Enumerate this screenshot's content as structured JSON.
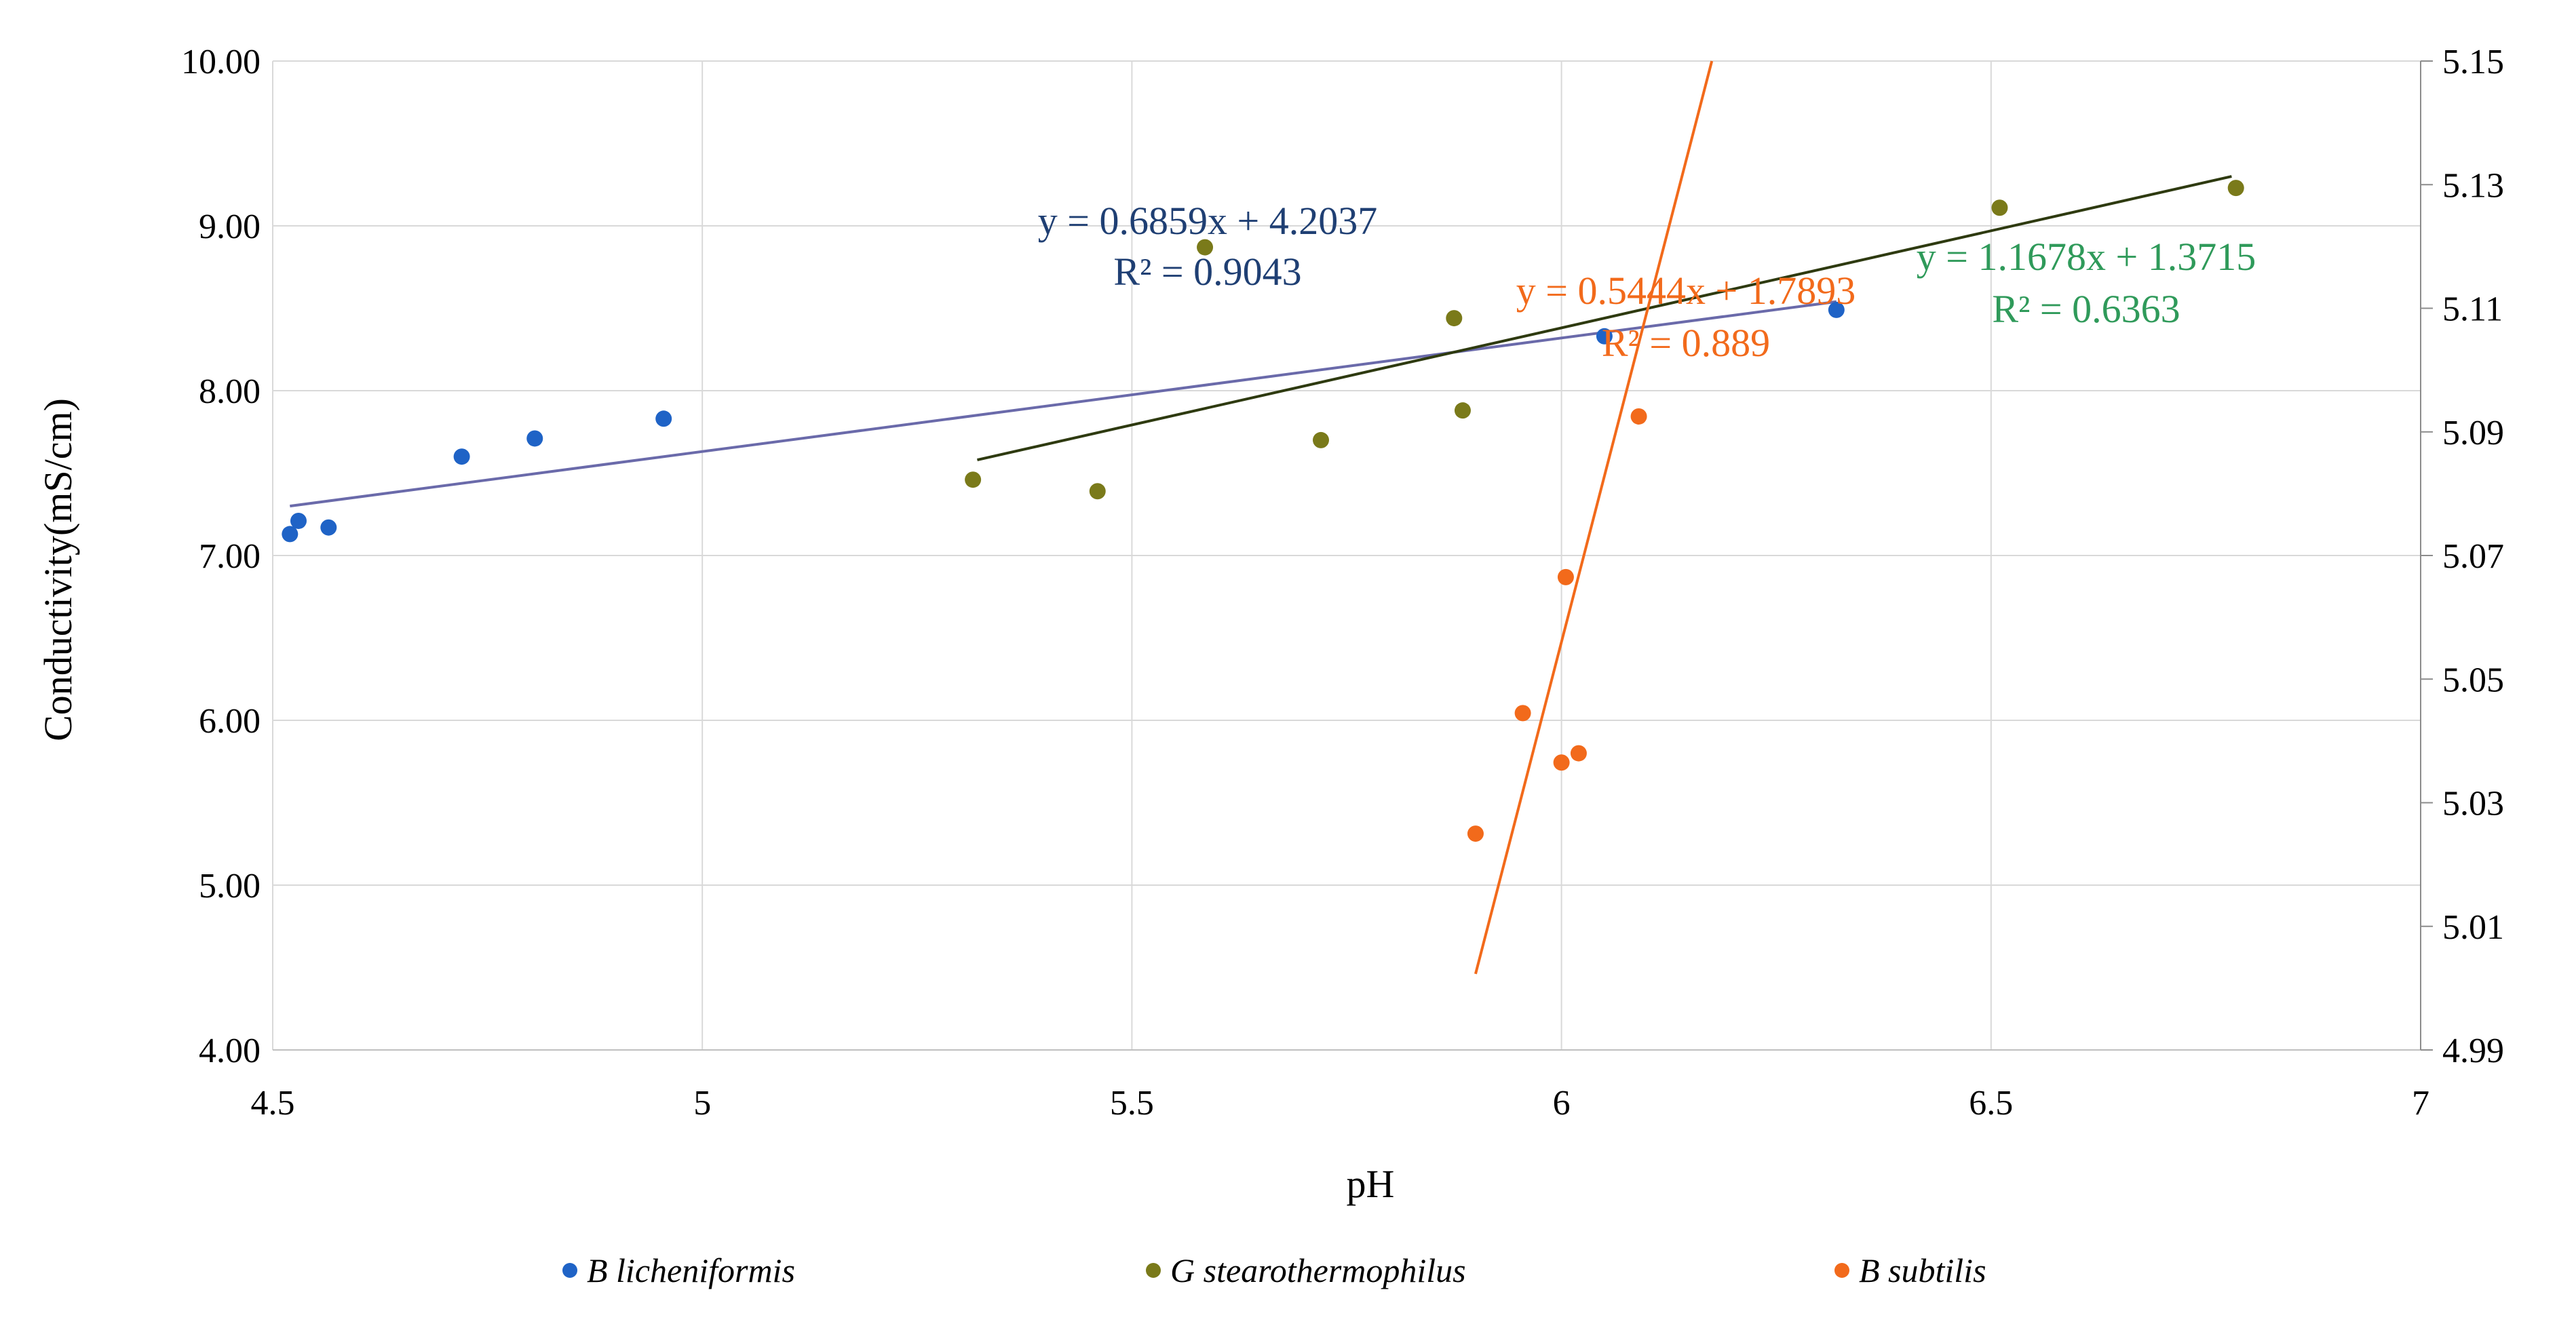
{
  "chart_data": {
    "type": "scatter",
    "xlabel": "pH",
    "ylabel": "Conductivity(mS/cm)",
    "xlim": [
      4.5,
      7
    ],
    "ylim": [
      4,
      10
    ],
    "y2lim": [
      4.99,
      5.15
    ],
    "xticks": [
      "4.5",
      "5",
      "5.5",
      "6",
      "6.5",
      "7"
    ],
    "yticks": [
      "4.00",
      "5.00",
      "6.00",
      "7.00",
      "8.00",
      "9.00",
      "10.00"
    ],
    "y2ticks": [
      "4.99",
      "5.01",
      "5.03",
      "5.05",
      "5.07",
      "5.09",
      "5.11",
      "5.13",
      "5.15"
    ],
    "grid": true,
    "legend_position": "bottom",
    "series": [
      {
        "name": "B licheniformis",
        "color": "#1f63c6",
        "axis": "primary",
        "x": [
          4.52,
          4.53,
          4.565,
          4.72,
          4.805,
          4.955,
          6.05,
          6.32
        ],
        "y": [
          7.13,
          7.21,
          7.17,
          7.6,
          7.71,
          7.83,
          8.33,
          8.49
        ],
        "trendline": {
          "label": "y = 0.6859x + 4.2037",
          "r2_label": "R² = 0.9043",
          "color": "#6a6aaa",
          "label_color": "#1f3f73",
          "x_range": [
            4.52,
            6.32
          ],
          "y_start": 7.3,
          "y_end": 8.54
        }
      },
      {
        "name": "G stearothermophilus",
        "color": "#7a7a1a",
        "axis": "primary",
        "x": [
          5.315,
          5.46,
          5.585,
          5.72,
          5.875,
          5.885,
          6.51,
          6.785
        ],
        "y": [
          7.46,
          7.39,
          8.87,
          7.7,
          8.44,
          7.88,
          9.11,
          9.23
        ],
        "trendline": {
          "label": "y = 1.1678x + 1.3715",
          "r2_label": "R² = 0.6363",
          "color": "#2e3a10",
          "label_color": "#2f9a5a",
          "x_range": [
            5.32,
            6.78
          ],
          "y_start": 7.58,
          "y_end": 9.3
        }
      },
      {
        "name": "B subtilis",
        "color": "#f26a1b",
        "axis": "secondary",
        "x": [
          5.9,
          5.955,
          6.0,
          6.005,
          6.02,
          6.09
        ],
        "y": [
          5.025,
          5.0445,
          5.0365,
          5.0665,
          5.038,
          5.0925
        ],
        "trendline": {
          "label": "y = 0.5444x + 1.7893",
          "r2_label": "R² = 0.889",
          "color": "#f26a1b",
          "label_color": "#f26a1b",
          "x_range": [
            5.9,
            6.175
          ],
          "y_start": 5.0023,
          "y_end": 5.15
        }
      }
    ]
  }
}
